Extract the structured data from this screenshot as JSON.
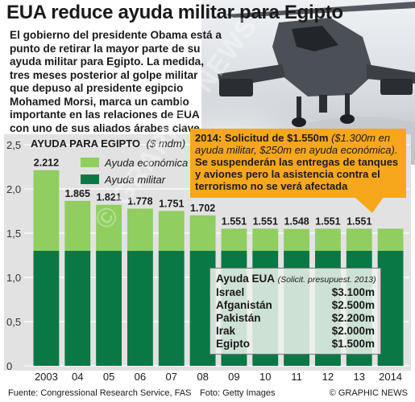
{
  "headline": "EUA reduce ayuda militar para Egipto",
  "intro_lines": [
    "El gobierno del presidente Obama está a",
    "punto de retirar la mayor parte de su",
    "ayuda militar para Egipto. La medida,",
    "tres meses posterior al golpe militar",
    "que depuso al presidente egipcio",
    "Mohamed Morsi, marca un cambio",
    "importante en las relaciones de EUA",
    "con uno de sus aliados árabes clave"
  ],
  "colors": {
    "military": "#0a7845",
    "economic": "#8fce5f",
    "callout": "#f7a71c",
    "panel_bg": "#e2e2e2",
    "grid": "#ffffff"
  },
  "chart_data": {
    "type": "bar",
    "stacked": true,
    "title": "AYUDA PARA EGIPTO",
    "unit": "($ mdm)",
    "categories": [
      "2003",
      "04",
      "05",
      "06",
      "07",
      "08",
      "09",
      "10",
      "11",
      "12",
      "13",
      "2014"
    ],
    "totals": [
      2.212,
      1.865,
      1.821,
      1.778,
      1.751,
      1.702,
      1.551,
      1.551,
      1.548,
      1.551,
      1.551,
      1.551
    ],
    "total_labels": [
      "2.212",
      "1.865",
      "1.821",
      "1.778",
      "1.751",
      "1.702",
      "1.551",
      "1.551",
      "1.548",
      "1.551",
      "1.551",
      ""
    ],
    "series": [
      {
        "name": "Ayuda militar",
        "values": [
          1.3,
          1.3,
          1.3,
          1.3,
          1.3,
          1.3,
          1.3,
          1.3,
          1.3,
          1.3,
          1.3,
          1.3
        ]
      },
      {
        "name": "Ayuda económica",
        "values": [
          0.912,
          0.565,
          0.521,
          0.478,
          0.451,
          0.402,
          0.251,
          0.251,
          0.248,
          0.251,
          0.251,
          0.251
        ]
      }
    ],
    "yticks": [
      "2,5",
      "2,0",
      "1,5",
      "1,0",
      "0,5",
      "0"
    ],
    "ylim": [
      0,
      2.5
    ],
    "grid": true,
    "legend": "top-left"
  },
  "callout": {
    "year_label": "2014: Solicitud de $1.550m",
    "detail": "($1.300m en ayuda militar, $250m en ayuda económica).",
    "statement": "Se suspenderán las entregas de tanques y aviones pero la asistencia contra el terrorismo no se verá afectada"
  },
  "aid_table": {
    "title": "Ayuda EUA",
    "note": "(Solicit. presupuest. 2013)",
    "rows": [
      {
        "country": "Israel",
        "amount": "$3.100m"
      },
      {
        "country": "Afganistán",
        "amount": "$2.500m"
      },
      {
        "country": "Pakistán",
        "amount": "$2.200m"
      },
      {
        "country": "Irak",
        "amount": "$2.000m"
      },
      {
        "country": "Egipto",
        "amount": "$1.500m"
      }
    ]
  },
  "watermark": "© GRAPHIC NEWS",
  "footer": {
    "source": "Fuente: Congressional Research Service, FAS",
    "photo": "Foto: Getty Images",
    "brand": "© GRAPHIC NEWS"
  },
  "photo_icon": "attack-helicopter"
}
